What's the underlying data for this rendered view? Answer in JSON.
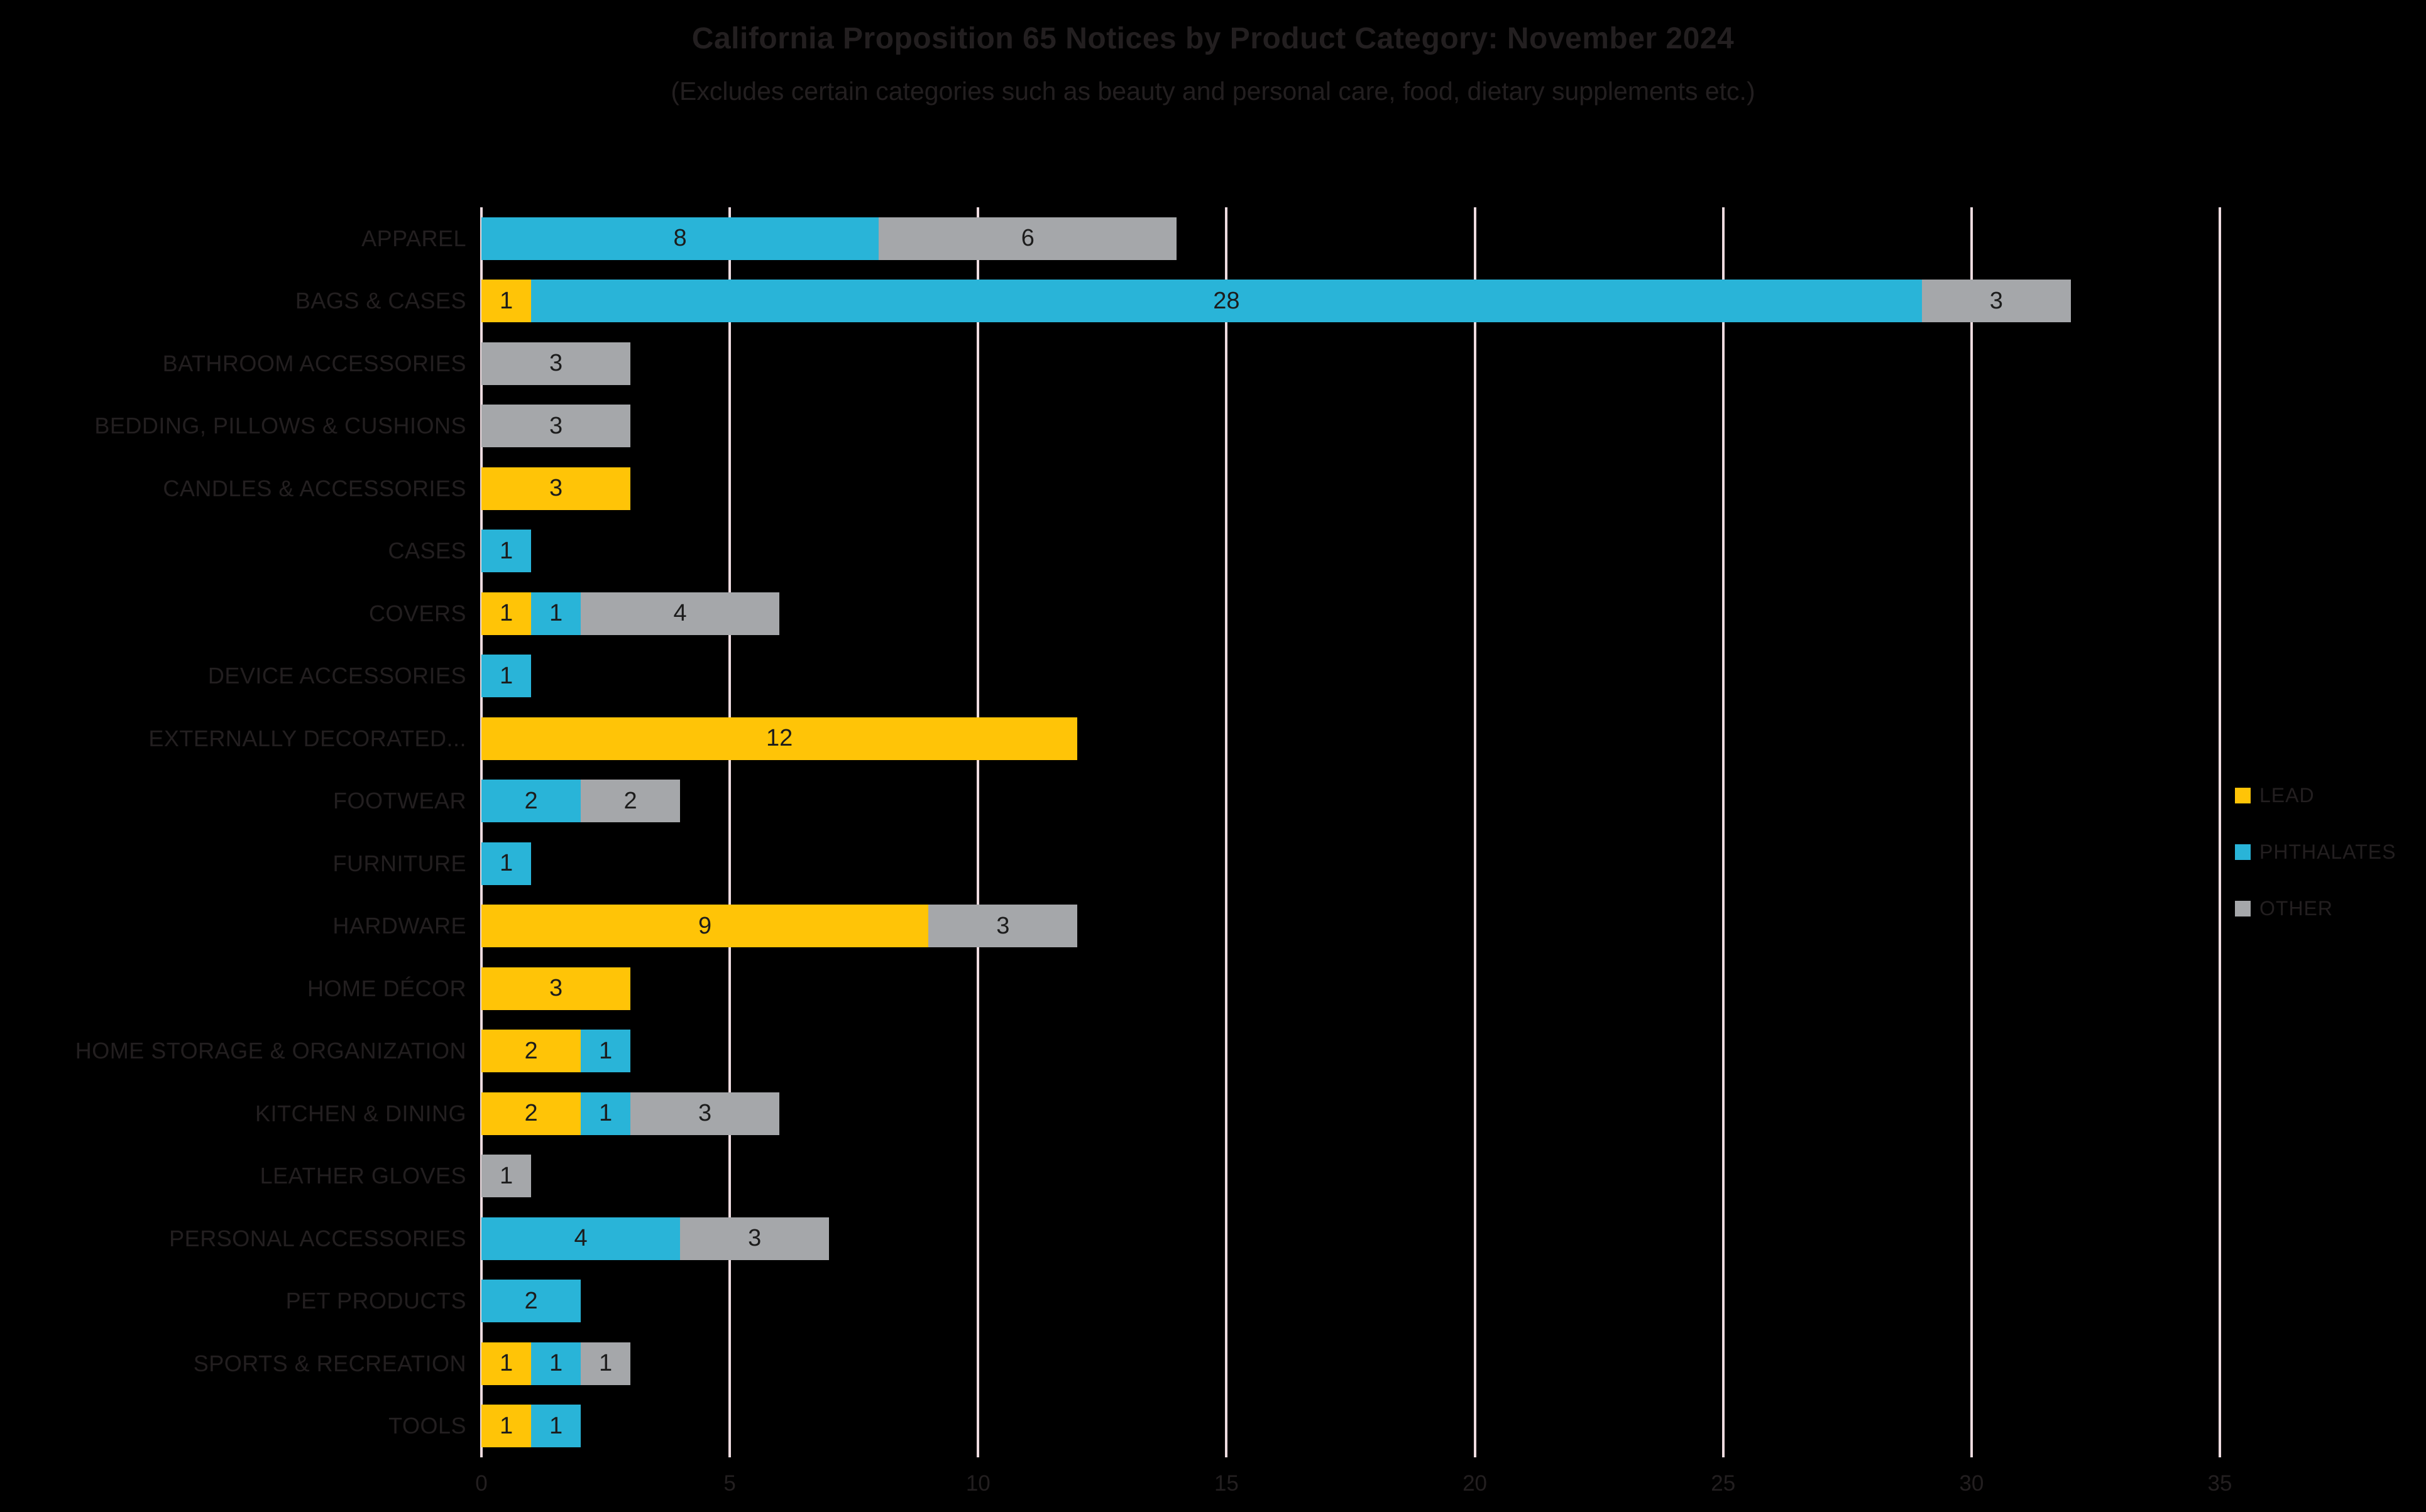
{
  "title": "California Proposition 65 Notices by Product Category: November 2024",
  "subtitle": "(Excludes certain categories such as beauty and personal care, food, dietary supplements etc.)",
  "colors": {
    "background": "#000000",
    "text": "#231F20",
    "gridline": "#EDDBDF",
    "value_label": "#1C1C1C",
    "lead": "#FFC407",
    "phthalates": "#29B4D8",
    "other": "#A5A7AA"
  },
  "chart_data": {
    "type": "bar",
    "orientation": "horizontal",
    "stacked": true,
    "grid": true,
    "data_labels": true,
    "legend_position": "right",
    "title": "California Proposition 65 Notices by Product Category: November 2024",
    "subtitle": "(Excludes certain categories such as beauty and personal care, food, dietary supplements etc.)",
    "xlabel": "",
    "ylabel": "",
    "xlim": [
      0,
      35
    ],
    "xticks": [
      0,
      5,
      10,
      15,
      20,
      25,
      30,
      35
    ],
    "categories": [
      "APPAREL",
      "BAGS & CASES",
      "BATHROOM ACCESSORIES",
      "BEDDING, PILLOWS & CUSHIONS",
      "CANDLES & ACCESSORIES",
      "CASES",
      "COVERS",
      "DEVICE ACCESSORIES",
      "EXTERNALLY DECORATED...",
      "FOOTWEAR",
      "FURNITURE",
      "HARDWARE",
      "HOME DÉCOR",
      "HOME STORAGE & ORGANIZATION",
      "KITCHEN & DINING",
      "LEATHER GLOVES",
      "PERSONAL ACCESSORIES",
      "PET PRODUCTS",
      "SPORTS & RECREATION",
      "TOOLS"
    ],
    "series": [
      {
        "name": "LEAD",
        "color": "#FFC407",
        "values": [
          0,
          1,
          0,
          0,
          3,
          0,
          1,
          0,
          12,
          0,
          0,
          9,
          3,
          2,
          2,
          0,
          0,
          0,
          1,
          1
        ]
      },
      {
        "name": "PHTHALATES",
        "color": "#29B4D8",
        "values": [
          8,
          28,
          0,
          0,
          0,
          1,
          1,
          1,
          0,
          2,
          1,
          0,
          0,
          1,
          1,
          0,
          4,
          2,
          1,
          1
        ]
      },
      {
        "name": "OTHER",
        "color": "#A5A7AA",
        "values": [
          6,
          3,
          3,
          3,
          0,
          0,
          4,
          0,
          0,
          2,
          0,
          3,
          0,
          0,
          3,
          1,
          3,
          0,
          1,
          0
        ]
      }
    ]
  }
}
